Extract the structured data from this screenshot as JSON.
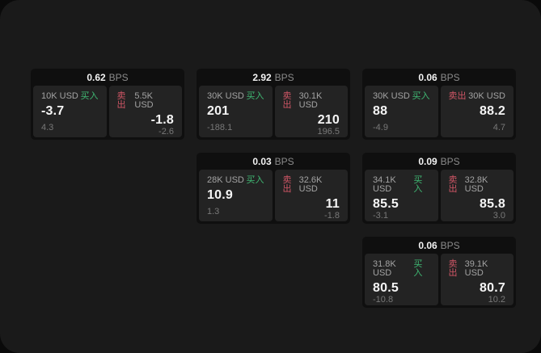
{
  "theme": {
    "page_bg": "#0a0a0a",
    "window_bg": "#1a1a1a",
    "card_bg": "#0f0f0f",
    "panel_bg": "#232323",
    "text_primary": "#f5f5f5",
    "text_secondary": "#a3a3a3",
    "text_dim": "#787878",
    "buy_color": "#3fb873",
    "sell_color": "#d05666"
  },
  "labels": {
    "bps_unit": "BPS",
    "buy": "买入",
    "sell": "卖出"
  },
  "cards": [
    {
      "bps": "0.62",
      "buy": {
        "size": "10K USD",
        "value": "-3.7",
        "sub": "4.3"
      },
      "sell": {
        "size": "5.5K USD",
        "value": "-1.8",
        "sub": "-2.6"
      }
    },
    {
      "bps": "2.92",
      "buy": {
        "size": "30K USD",
        "value": "201",
        "sub": "-188.1"
      },
      "sell": {
        "size": "30.1K USD",
        "value": "210",
        "sub": "196.5"
      }
    },
    {
      "bps": "0.06",
      "buy": {
        "size": "30K USD",
        "value": "88",
        "sub": "-4.9"
      },
      "sell": {
        "size": "30K USD",
        "value": "88.2",
        "sub": "4.7"
      }
    },
    {
      "bps": "0.03",
      "buy": {
        "size": "28K USD",
        "value": "10.9",
        "sub": "1.3"
      },
      "sell": {
        "size": "32.6K USD",
        "value": "11",
        "sub": "-1.8"
      }
    },
    {
      "bps": "0.09",
      "buy": {
        "size": "34.1K USD",
        "value": "85.5",
        "sub": "-3.1"
      },
      "sell": {
        "size": "32.8K USD",
        "value": "85.8",
        "sub": "3.0"
      }
    },
    {
      "bps": "0.06",
      "buy": {
        "size": "31.8K USD",
        "value": "80.5",
        "sub": "-10.8"
      },
      "sell": {
        "size": "39.1K USD",
        "value": "80.7",
        "sub": "10.2"
      }
    }
  ]
}
